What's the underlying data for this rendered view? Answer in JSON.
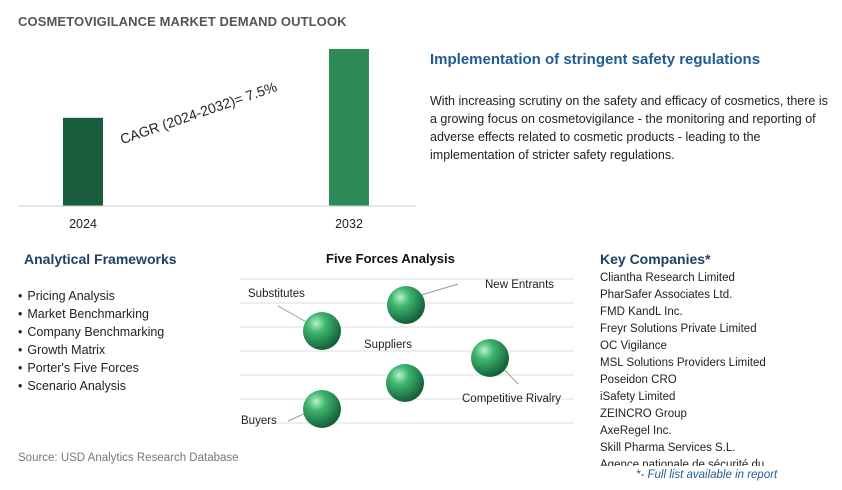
{
  "header": {
    "title": "COSMETOVIGILANCE MARKET DEMAND OUTLOOK"
  },
  "chart_data": {
    "type": "bar",
    "categories": [
      "2024",
      "2032"
    ],
    "values": [
      1.0,
      1.78
    ],
    "ylim": [
      0,
      1.95
    ],
    "grid": false,
    "annotation": "CAGR (2024-2032)=   7.5%",
    "bar_colors": [
      "#1a5c3e",
      "#2e8b57"
    ]
  },
  "highlight": {
    "title": "Implementation of stringent safety regulations",
    "body": "With increasing scrutiny on the safety and efficacy of cosmetics, there is a growing focus on cosmetovigilance - the monitoring and reporting of adverse effects related to cosmetic products - leading to the implementation of stricter safety regulations."
  },
  "frameworks": {
    "title": "Analytical Frameworks",
    "items": [
      "Pricing Analysis",
      "Market Benchmarking",
      "Company Benchmarking",
      "Growth Matrix",
      "Porter's Five Forces",
      "Scenario Analysis"
    ]
  },
  "five_forces": {
    "title": "Five Forces Analysis",
    "labels": {
      "substitutes": "Substitutes",
      "new_entrants": "New Entrants",
      "suppliers": "Suppliers",
      "competitive_rivalry": "Competitive Rivalry",
      "buyers": "Buyers"
    },
    "sphere_color": "#2e9e5b"
  },
  "companies": {
    "title": "Key Companies*",
    "items": [
      "Cliantha Research Limited",
      "PharSafer Associates Ltd.",
      "FMD KandL Inc.",
      "Freyr Solutions Private Limited",
      "OC Vigilance",
      "MSL Solutions Providers Limited",
      "Poseidon CRO",
      "iSafety Limited",
      "ZEINCRO Group",
      "AxeRegel Inc.",
      "Skill Pharma Services S.L.",
      "Agence nationale de sécurité du"
    ]
  },
  "footer": {
    "source": "Source: USD Analytics Research Database",
    "note": "*- Full list available in report"
  }
}
